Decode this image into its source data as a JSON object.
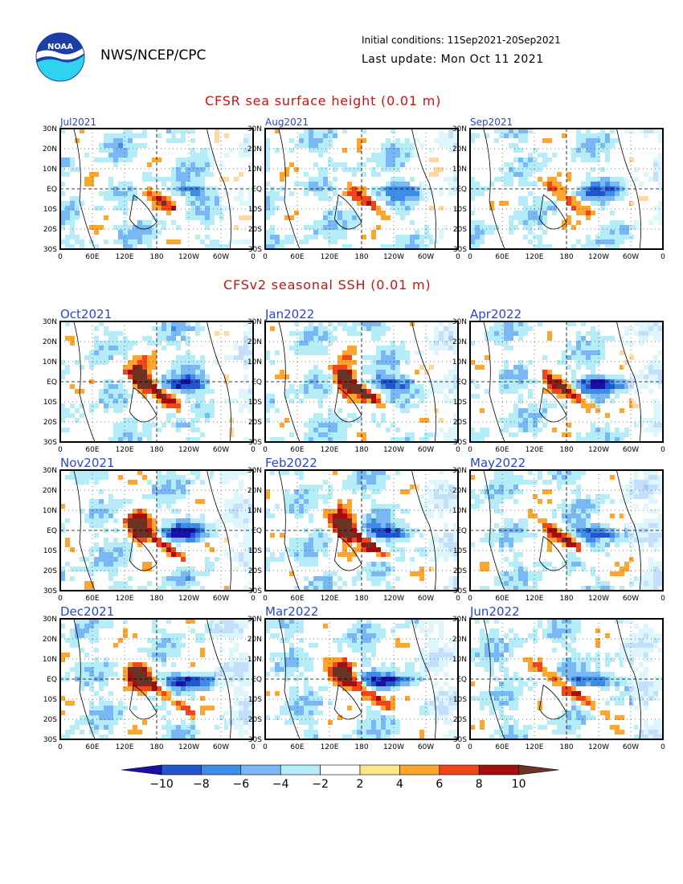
{
  "header": {
    "org": "NWS/NCEP/CPC",
    "initial_conditions": "Initial conditions: 11Sep2021-20Sep2021",
    "last_update": "Last update: Mon Oct 11 2021",
    "logo_text": "NOAA"
  },
  "sections": {
    "observed_title": "CFSR sea surface height (0.01 m)",
    "forecast_title": "CFSv2 seasonal SSH (0.01 m)"
  },
  "axes": {
    "y_ticks": [
      "30N",
      "20N",
      "10N",
      "EQ",
      "10S",
      "20S",
      "30S"
    ],
    "x_ticks": [
      "0",
      "60E",
      "120E",
      "180",
      "120W",
      "60W",
      "0"
    ]
  },
  "chart_data": {
    "type": "heatmap",
    "panels": [
      {
        "label": "Jul2021",
        "group": "observed"
      },
      {
        "label": "Aug2021",
        "group": "observed"
      },
      {
        "label": "Sep2021",
        "group": "observed"
      },
      {
        "label": "Oct2021",
        "group": "forecast"
      },
      {
        "label": "Jan2022",
        "group": "forecast"
      },
      {
        "label": "Apr2022",
        "group": "forecast"
      },
      {
        "label": "Nov2021",
        "group": "forecast"
      },
      {
        "label": "Feb2022",
        "group": "forecast"
      },
      {
        "label": "May2022",
        "group": "forecast"
      },
      {
        "label": "Dec2021",
        "group": "forecast"
      },
      {
        "label": "Mar2022",
        "group": "forecast"
      },
      {
        "label": "Jun2022",
        "group": "forecast"
      }
    ],
    "colorbar": {
      "labels": [
        "−10",
        "−8",
        "−6",
        "−4",
        "−2",
        "2",
        "4",
        "6",
        "8",
        "10"
      ],
      "colors": [
        "#1a10a8",
        "#2356cc",
        "#3f8ce6",
        "#7ab8f5",
        "#b4ecf7",
        "#ffffff",
        "#fde68a",
        "#fca630",
        "#f2451a",
        "#a50e0e",
        "#6b3326"
      ]
    }
  }
}
